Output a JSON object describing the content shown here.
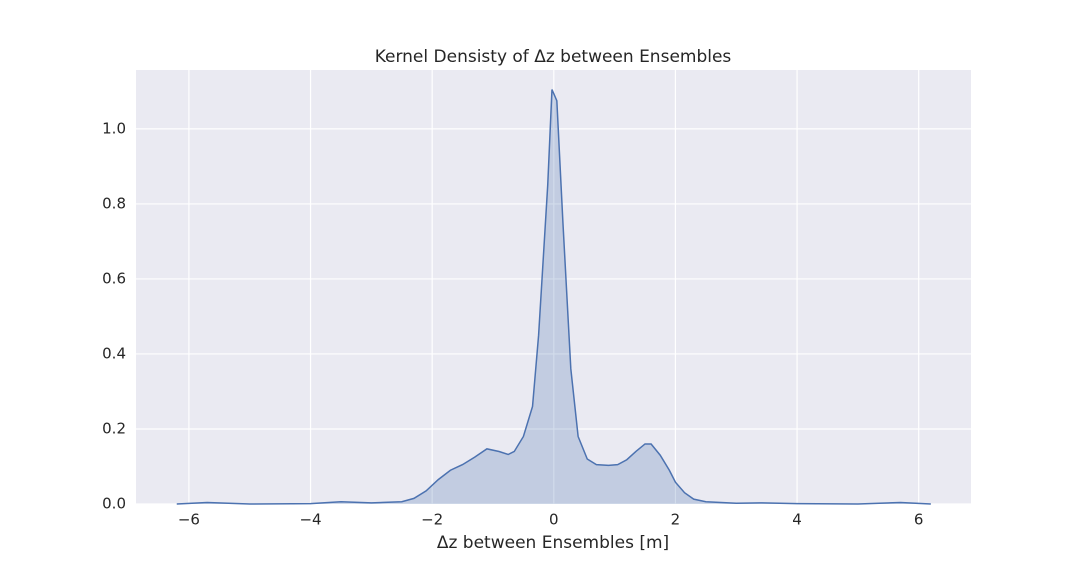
{
  "chart_data": {
    "type": "area",
    "title": "Kernel Densisty of Δz between Ensembles",
    "x_label": "Δz between Ensembles [m]",
    "x": [
      -6.2,
      -5.7,
      -5.0,
      -4.0,
      -3.5,
      -3.0,
      -2.5,
      -2.3,
      -2.1,
      -1.9,
      -1.7,
      -1.5,
      -1.3,
      -1.1,
      -0.9,
      -0.75,
      -0.65,
      -0.5,
      -0.35,
      -0.25,
      -0.1,
      -0.03,
      0.05,
      0.15,
      0.28,
      0.4,
      0.55,
      0.7,
      0.9,
      1.05,
      1.2,
      1.35,
      1.5,
      1.6,
      1.75,
      1.9,
      2.0,
      2.15,
      2.3,
      2.5,
      3.0,
      3.4,
      4.0,
      5.0,
      5.7,
      6.2
    ],
    "series": [
      {
        "color": "#4c72b0",
        "values": [
          0.0,
          0.004,
          0.0,
          0.001,
          0.006,
          0.003,
          0.006,
          0.015,
          0.035,
          0.065,
          0.09,
          0.105,
          0.125,
          0.147,
          0.14,
          0.132,
          0.14,
          0.18,
          0.26,
          0.45,
          0.85,
          1.105,
          1.075,
          0.75,
          0.36,
          0.18,
          0.12,
          0.105,
          0.103,
          0.105,
          0.118,
          0.14,
          0.16,
          0.16,
          0.13,
          0.09,
          0.058,
          0.03,
          0.013,
          0.006,
          0.002,
          0.003,
          0.001,
          0.0,
          0.004,
          0.0
        ]
      }
    ],
    "xlim": [
      -6.87,
      6.86
    ],
    "ylim": [
      0,
      1.157
    ],
    "xticks": [
      {
        "value": -6,
        "label": "−6"
      },
      {
        "value": -4,
        "label": "−4"
      },
      {
        "value": -2,
        "label": "−2"
      },
      0,
      2,
      4,
      6
    ],
    "yticks": [
      {
        "value": 0,
        "label": "0.0"
      },
      0.2,
      0.4,
      0.6,
      0.8,
      {
        "value": 1,
        "label": "1.0"
      }
    ],
    "grid": true,
    "background": "#eaeaf2"
  }
}
